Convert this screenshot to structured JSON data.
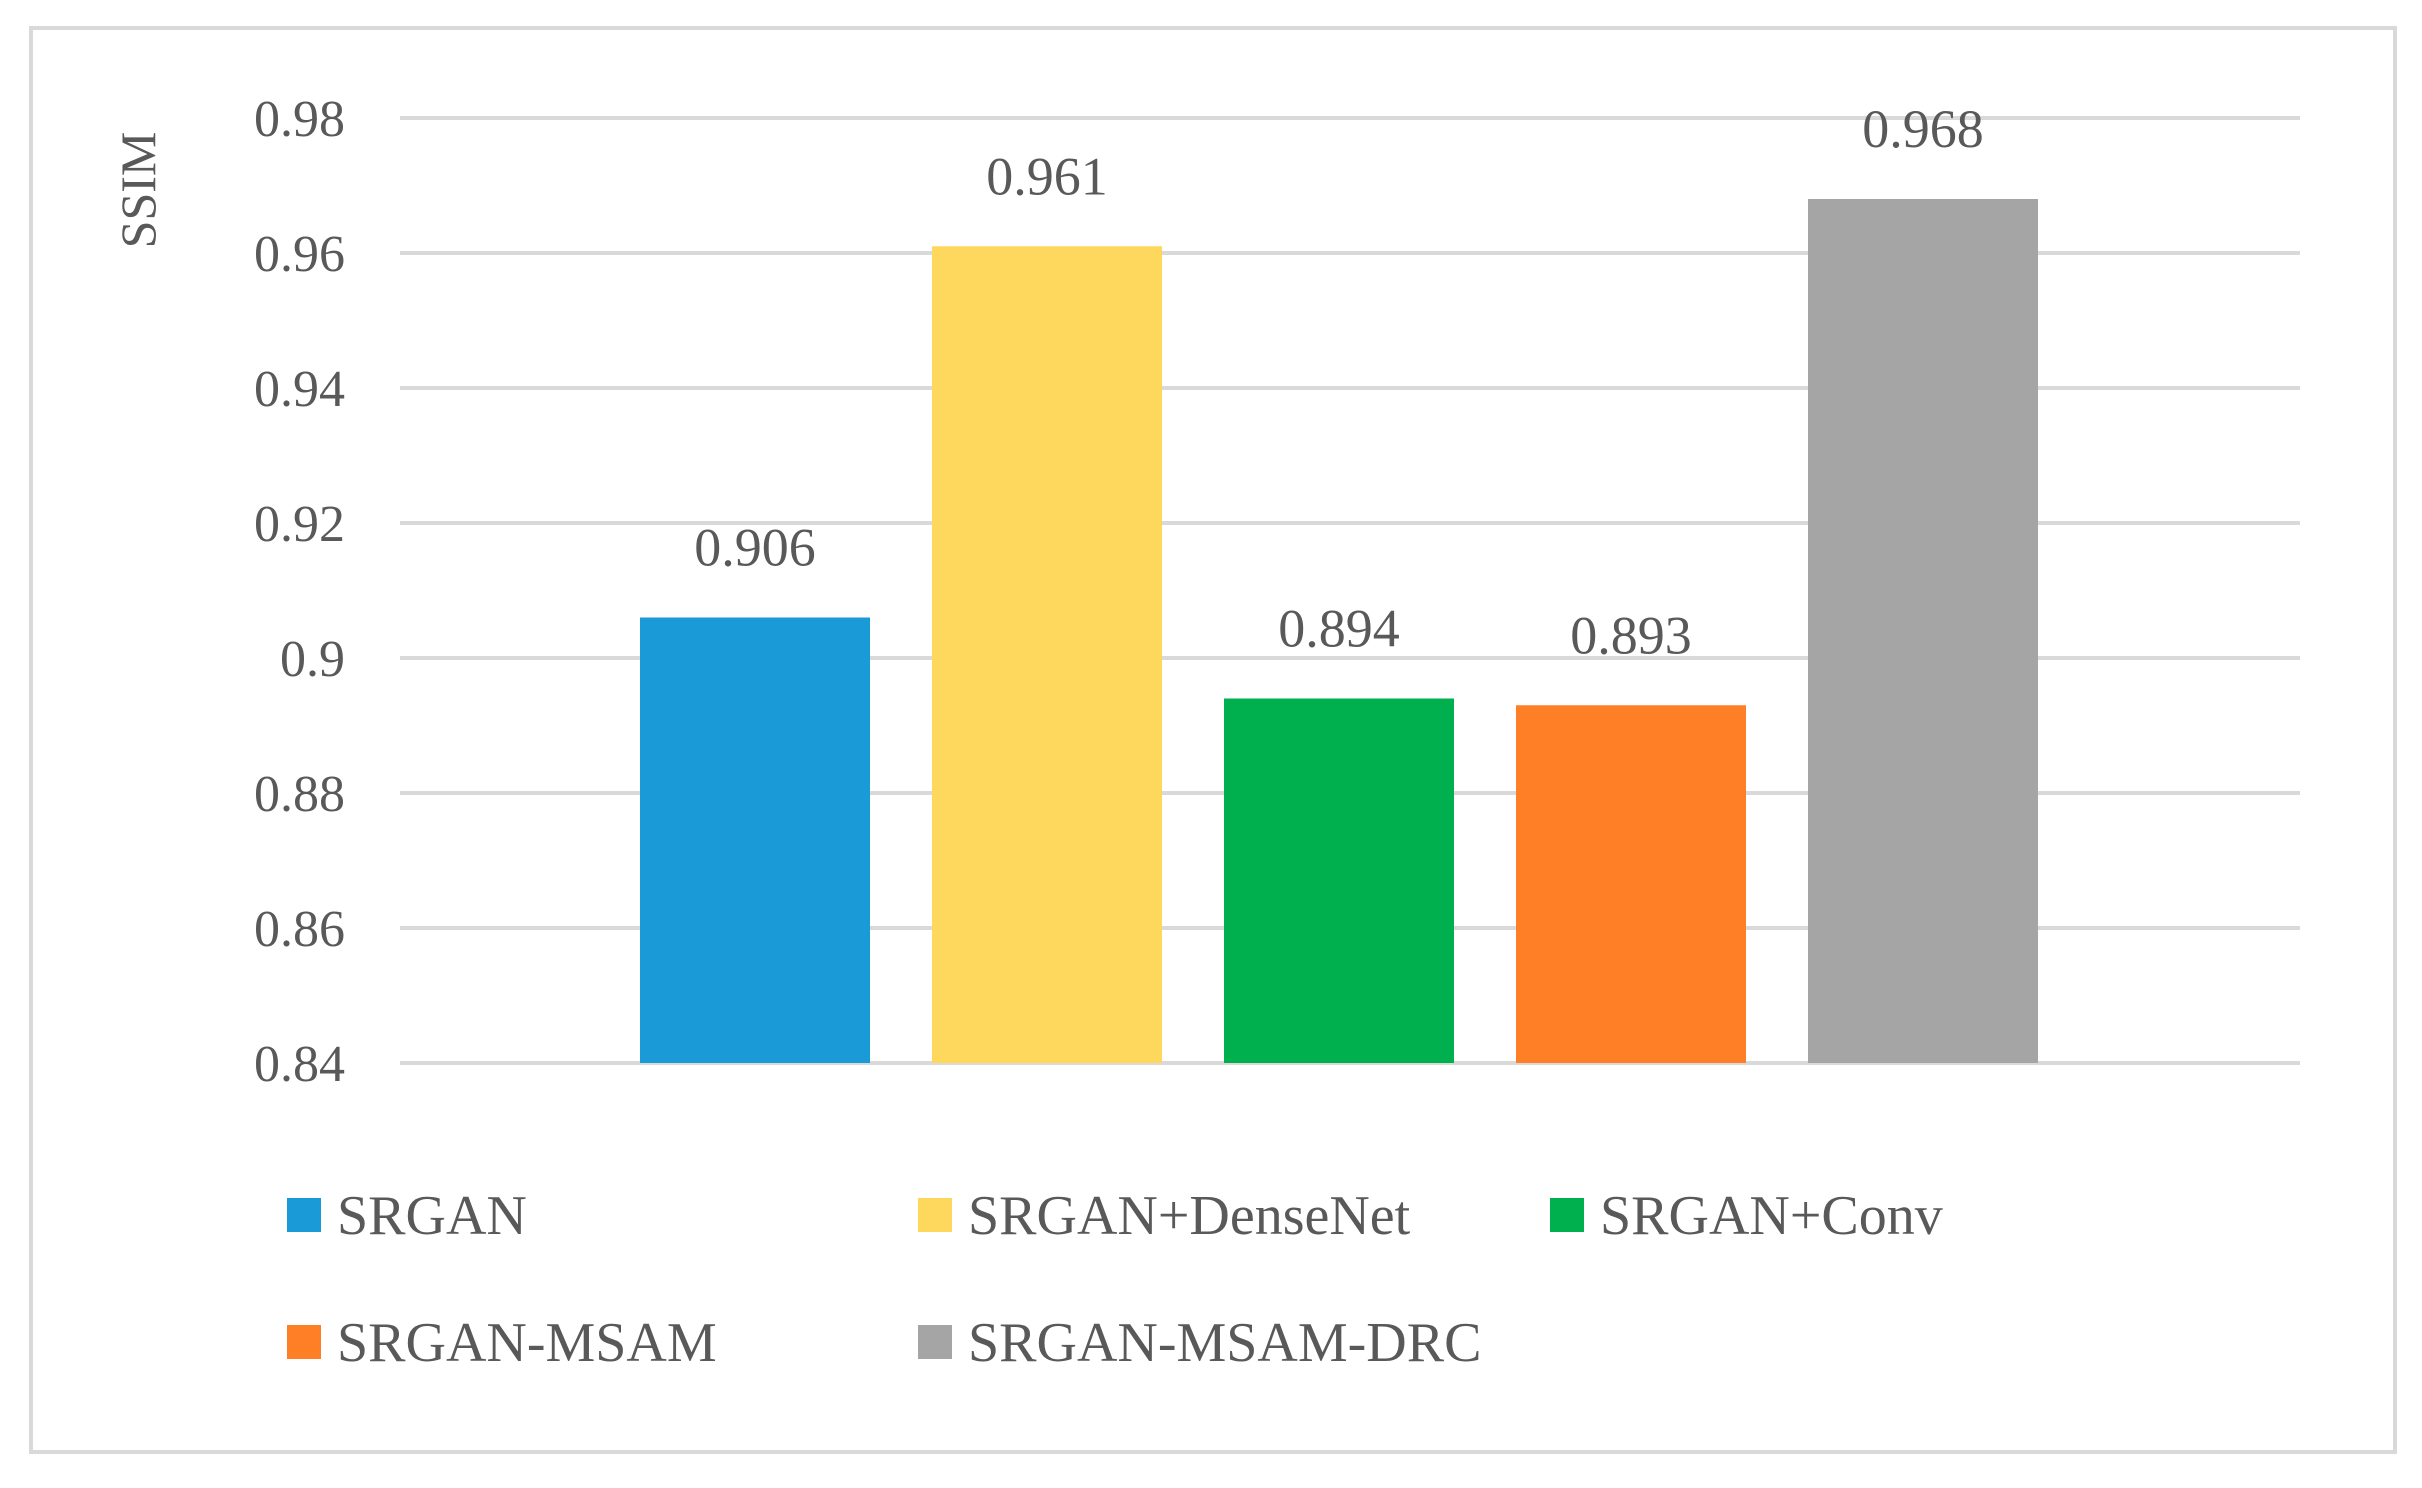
{
  "chart_data": {
    "type": "bar",
    "title": "",
    "xlabel": "",
    "ylabel": "SSIM",
    "ylim": [
      0.84,
      0.98
    ],
    "yticks": [
      0.84,
      0.86,
      0.88,
      0.9,
      0.92,
      0.94,
      0.96,
      0.98
    ],
    "ytick_labels": [
      "0.84",
      "0.86",
      "0.88",
      "0.9",
      "0.92",
      "0.94",
      "0.96",
      "0.98"
    ],
    "grid": true,
    "legend_position": "bottom",
    "series": [
      {
        "name": "SRGAN",
        "value": 0.906,
        "label": "0.906",
        "color": "#1A9AD6"
      },
      {
        "name": "SRGAN+DenseNet",
        "value": 0.961,
        "label": "0.961",
        "color": "#FDD85D"
      },
      {
        "name": "SRGAN+Conv",
        "value": 0.894,
        "label": "0.894",
        "color": "#00B04F"
      },
      {
        "name": "SRGAN-MSAM",
        "value": 0.893,
        "label": "0.893",
        "color": "#FF7F27"
      },
      {
        "name": "SRGAN-MSAM-DRC",
        "value": 0.968,
        "label": "0.968",
        "color": "#A5A5A5"
      }
    ]
  }
}
